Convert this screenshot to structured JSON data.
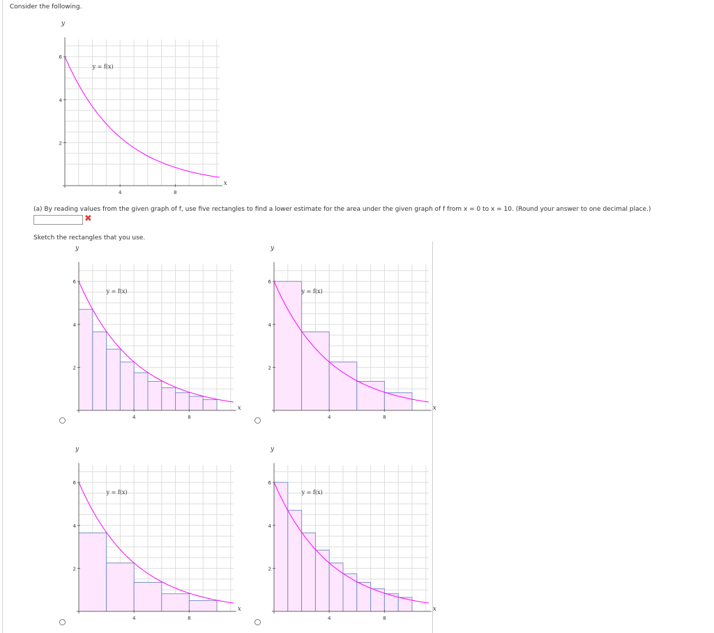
{
  "intro": "Consider the following.",
  "question_a": "(a) By reading values from the given graph of f, use five rectangles to find a lower estimate for the area under the given graph of f from x = 0 to x = 10. (Round your answer to one decimal place.)",
  "answer": {
    "value": "",
    "status": "incorrect"
  },
  "sketch_prompt": "Sketch the rectangles that you use.",
  "colors": {
    "curve": "#ff00ff",
    "rect_fill": "#ffe6ff",
    "rect_stroke": "#7a8fc7",
    "grid": "#dddddd"
  },
  "main_graph": {
    "xlabel": "x",
    "ylabel": "y",
    "curve_label": "y = f(x)",
    "x_ticks": [
      "4",
      "8"
    ],
    "y_ticks": [
      "6",
      "4",
      "2"
    ]
  },
  "options": [
    {
      "id": "A",
      "xlabel": "x",
      "ylabel": "y",
      "curve_label": "y = f(x)",
      "x_ticks": [
        "4",
        "8"
      ],
      "y_ticks": [
        "6",
        "4",
        "2"
      ],
      "rect_heights": [
        4.7,
        3.65,
        2.85,
        2.25,
        1.75,
        1.35,
        1.05,
        0.82,
        0.65,
        0.5
      ],
      "rect_width": 1
    },
    {
      "id": "B",
      "xlabel": "x",
      "ylabel": "y",
      "curve_label": "y = f(x)",
      "x_ticks": [
        "4",
        "8"
      ],
      "y_ticks": [
        "6",
        "4",
        "2"
      ],
      "rect_heights": [
        6.0,
        3.65,
        2.25,
        1.35,
        0.82
      ],
      "rect_width": 2
    },
    {
      "id": "C",
      "xlabel": "x",
      "ylabel": "y",
      "curve_label": "y = f(x)",
      "x_ticks": [
        "4",
        "8"
      ],
      "y_ticks": [
        "6",
        "4",
        "2"
      ],
      "rect_heights": [
        3.65,
        2.25,
        1.35,
        0.82,
        0.5
      ],
      "rect_width": 2
    },
    {
      "id": "D",
      "xlabel": "x",
      "ylabel": "y",
      "curve_label": "y = f(x)",
      "x_ticks": [
        "4",
        "8"
      ],
      "y_ticks": [
        "6",
        "4",
        "2"
      ],
      "rect_heights": [
        6.0,
        4.7,
        3.65,
        2.85,
        2.25,
        1.75,
        1.35,
        1.05,
        0.82,
        0.65
      ],
      "rect_width": 1
    }
  ]
}
